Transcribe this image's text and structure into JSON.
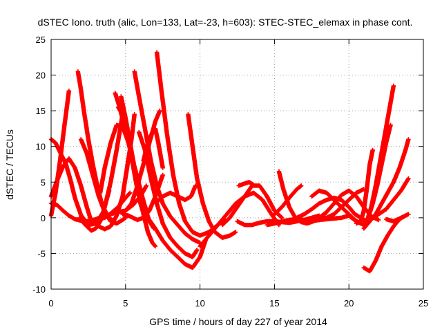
{
  "chart_data": {
    "type": "scatter",
    "title": "dSTEC Iono. truth (alic, Lon=133, Lat=-23, h=603): STEC-STEC_elemax in phase cont.",
    "xlabel": "GPS time / hours of day 227 of year 2014",
    "ylabel": "dSTEC  / TECUs",
    "xlim": [
      0,
      25
    ],
    "ylim": [
      -10,
      25
    ],
    "xticks": [
      0,
      5,
      10,
      15,
      20,
      25
    ],
    "yticks": [
      -10,
      -5,
      0,
      5,
      10,
      15,
      20,
      25
    ],
    "grid": true,
    "marker": "plus",
    "color": "#ff0000",
    "series": [
      {
        "x": [
          0.0,
          0.3,
          0.6,
          0.9,
          1.2
        ],
        "y": [
          0.3,
          3.5,
          8.0,
          13.0,
          17.8
        ]
      },
      {
        "x": [
          0.0,
          0.3,
          0.6,
          1.0,
          1.3,
          1.6,
          2.0,
          2.5,
          3.0,
          3.5,
          3.9
        ],
        "y": [
          11.0,
          10.5,
          9.2,
          7.5,
          5.3,
          2.8,
          0.4,
          -1.0,
          -0.8,
          0.8,
          3.8
        ]
      },
      {
        "x": [
          0.0,
          0.4,
          0.8,
          1.2,
          1.6,
          2.0,
          2.4,
          2.7
        ],
        "y": [
          3.0,
          5.2,
          7.2,
          8.3,
          7.0,
          4.5,
          1.5,
          -0.5
        ]
      },
      {
        "x": [
          0.0,
          0.4,
          0.8,
          1.2,
          1.6,
          2.0,
          2.5,
          3.0,
          3.5,
          4.0,
          4.5,
          5.0,
          5.5,
          6.0,
          6.4
        ],
        "y": [
          2.0,
          1.8,
          1.0,
          0.3,
          -0.2,
          -0.4,
          -0.5,
          -0.2,
          0.2,
          0.5,
          0.8,
          1.0,
          1.8,
          3.0,
          4.5
        ]
      },
      {
        "x": [
          1.8,
          2.0,
          2.2,
          2.5,
          2.8,
          3.1,
          3.4,
          3.8,
          4.2
        ],
        "y": [
          20.5,
          18.0,
          15.0,
          11.0,
          7.5,
          4.5,
          2.0,
          0.2,
          -0.5
        ]
      },
      {
        "x": [
          2.0,
          2.4,
          2.8,
          3.2,
          3.6,
          4.0,
          4.4,
          4.8,
          5.0
        ],
        "y": [
          11.0,
          9.0,
          6.0,
          3.0,
          0.8,
          -0.5,
          -0.8,
          -0.3,
          0.0
        ]
      },
      {
        "x": [
          1.9,
          2.3,
          2.7,
          3.0,
          3.3,
          3.6,
          4.0,
          4.4,
          4.8
        ],
        "y": [
          0.0,
          -1.0,
          -1.8,
          -1.5,
          -0.5,
          1.5,
          5.0,
          9.5,
          14.5
        ]
      },
      {
        "x": [
          2.8,
          3.2,
          3.6,
          4.0,
          4.4,
          4.8,
          5.1,
          5.4,
          5.6
        ],
        "y": [
          -0.5,
          -1.2,
          -1.6,
          -1.2,
          0.3,
          3.0,
          7.0,
          11.0,
          14.5
        ]
      },
      {
        "x": [
          3.2,
          3.6,
          4.0,
          4.5,
          5.0,
          5.3
        ],
        "y": [
          -0.2,
          0.0,
          0.6,
          1.5,
          2.8,
          3.5
        ]
      },
      {
        "x": [
          3.3,
          3.6,
          4.0,
          4.4,
          4.8,
          5.2,
          5.6,
          6.0,
          6.3,
          6.6,
          6.9
        ],
        "y": [
          3.5,
          7.0,
          10.5,
          13.0,
          12.8,
          10.5,
          7.0,
          4.0,
          1.5,
          -0.5,
          -1.5
        ]
      },
      {
        "x": [
          4.3,
          4.6,
          4.9,
          5.2,
          5.5,
          5.8,
          6.1,
          6.4
        ],
        "y": [
          17.5,
          15.5,
          13.0,
          10.5,
          8.0,
          5.5,
          3.0,
          1.0
        ]
      },
      {
        "x": [
          4.5,
          4.8,
          5.1,
          5.4,
          5.7,
          6.0,
          6.3
        ],
        "y": [
          15.5,
          14.5,
          12.0,
          8.5,
          5.0,
          2.0,
          0.0
        ]
      },
      {
        "x": [
          4.7,
          5.0,
          5.3,
          5.6,
          5.9,
          6.2,
          6.5,
          6.8,
          7.0
        ],
        "y": [
          17.0,
          14.0,
          10.5,
          7.0,
          3.5,
          0.5,
          -2.0,
          -3.5,
          -4.0
        ]
      },
      {
        "x": [
          4.8,
          5.2,
          5.5,
          5.8,
          6.2,
          6.6,
          7.0,
          7.5
        ],
        "y": [
          0.5,
          0.3,
          0.0,
          -0.3,
          0.0,
          1.0,
          3.0,
          6.0
        ]
      },
      {
        "x": [
          5.0,
          5.4,
          5.8,
          6.2,
          6.6,
          7.0,
          7.3
        ],
        "y": [
          1.0,
          2.0,
          4.5,
          7.5,
          10.5,
          13.5,
          15.0
        ]
      },
      {
        "x": [
          5.6,
          5.9,
          6.3,
          6.7,
          7.1,
          7.5,
          8.0,
          8.5,
          9.0,
          9.5,
          10.0
        ],
        "y": [
          20.5,
          17.0,
          12.5,
          8.0,
          4.5,
          2.0,
          0.2,
          -1.0,
          -2.2,
          -3.0,
          -3.5
        ]
      },
      {
        "x": [
          5.9,
          6.3,
          6.7,
          7.1,
          7.5,
          8.0,
          8.5,
          9.0,
          9.5,
          9.8
        ],
        "y": [
          12.0,
          9.5,
          5.5,
          2.0,
          -0.8,
          -2.8,
          -4.0,
          -5.0,
          -5.5,
          -4.5
        ]
      },
      {
        "x": [
          6.2,
          6.5,
          6.8,
          7.0,
          7.2,
          7.5
        ],
        "y": [
          8.0,
          10.5,
          12.0,
          12.5,
          10.5,
          7.0
        ]
      },
      {
        "x": [
          7.1,
          7.4,
          7.8,
          8.2,
          8.6,
          9.0,
          9.5,
          10.0,
          10.6,
          11.2,
          11.6
        ],
        "y": [
          23.2,
          18.0,
          11.5,
          6.0,
          2.0,
          -0.5,
          -2.0,
          -2.5,
          -2.0,
          -1.0,
          -0.2
        ]
      },
      {
        "x": [
          6.6,
          7.0,
          7.5,
          8.0,
          8.5,
          9.0,
          9.5,
          10.0,
          10.4
        ],
        "y": [
          -0.3,
          -1.5,
          -3.2,
          -4.5,
          -5.5,
          -6.5,
          -7.0,
          -5.5,
          -3.0
        ]
      },
      {
        "x": [
          7.0,
          7.5,
          8.0,
          8.5,
          9.0,
          9.4,
          9.7
        ],
        "y": [
          2.0,
          3.0,
          3.5,
          3.0,
          2.5,
          3.0,
          4.5
        ]
      },
      {
        "x": [
          9.2,
          9.5,
          9.8,
          10.2,
          10.6,
          11.0,
          11.5,
          12.0,
          12.4
        ],
        "y": [
          14.5,
          10.0,
          5.5,
          2.0,
          -0.5,
          -2.0,
          -2.8,
          -2.5,
          -2.0
        ]
      },
      {
        "x": [
          10.0,
          10.6,
          11.2,
          11.8,
          12.4,
          13.0,
          13.6,
          14.2,
          14.8,
          15.3
        ],
        "y": [
          -4.0,
          -2.5,
          -1.0,
          0.5,
          2.0,
          3.0,
          3.5,
          2.5,
          0.5,
          -1.0
        ]
      },
      {
        "x": [
          11.5,
          12.0,
          12.5,
          13.0,
          13.5,
          14.0,
          14.5,
          15.0,
          15.5
        ],
        "y": [
          -1.0,
          0.0,
          1.5,
          3.0,
          4.5,
          4.5,
          3.0,
          1.0,
          0.0
        ]
      },
      {
        "x": [
          12.6,
          13.0,
          13.3,
          13.6
        ],
        "y": [
          4.5,
          4.8,
          5.0,
          4.6
        ]
      },
      {
        "x": [
          12.5,
          13.0,
          13.5,
          14.0,
          14.5,
          15.0,
          15.5,
          16.0,
          16.5,
          17.0,
          17.5,
          18.0
        ],
        "y": [
          -0.5,
          -1.0,
          -1.0,
          -0.7,
          -0.5,
          -0.5,
          -0.6,
          -0.7,
          -0.5,
          -0.3,
          0.0,
          0.3
        ]
      },
      {
        "x": [
          15.3,
          15.6,
          16.0,
          16.4,
          16.8,
          17.2,
          17.6,
          18.0,
          18.4
        ],
        "y": [
          6.5,
          4.0,
          1.5,
          0.0,
          -0.6,
          -0.8,
          -0.5,
          0.0,
          0.5
        ]
      },
      {
        "x": [
          15.0,
          15.5,
          16.0,
          16.5,
          16.8
        ],
        "y": [
          0.5,
          1.5,
          2.8,
          4.0,
          4.5
        ]
      },
      {
        "x": [
          14.5,
          15.0,
          15.5,
          16.0,
          16.5,
          17.0,
          17.5,
          18.0,
          18.5,
          19.0,
          19.5,
          20.0,
          20.5,
          21.0
        ],
        "y": [
          -1.0,
          -0.8,
          -0.5,
          -0.3,
          -0.2,
          -0.3,
          -0.5,
          -0.3,
          0.0,
          0.5,
          1.5,
          2.5,
          3.5,
          4.0
        ]
      },
      {
        "x": [
          17.5,
          18.0,
          18.5,
          19.0,
          19.5,
          20.0,
          20.4,
          20.8
        ],
        "y": [
          3.0,
          3.8,
          3.5,
          2.5,
          1.5,
          0.5,
          -0.3,
          -0.8
        ]
      },
      {
        "x": [
          16.5,
          17.0,
          17.5,
          18.0,
          18.5,
          19.0,
          19.5,
          20.0,
          20.4,
          20.8,
          21.2
        ],
        "y": [
          0.0,
          0.5,
          1.2,
          2.0,
          2.5,
          2.8,
          2.5,
          1.5,
          0.5,
          0.0,
          -0.5
        ]
      },
      {
        "x": [
          18.0,
          18.5,
          19.0,
          19.5,
          20.0,
          20.5,
          21.0,
          21.5,
          22.0
        ],
        "y": [
          0.0,
          0.8,
          2.0,
          3.2,
          3.8,
          3.0,
          1.5,
          0.2,
          -0.3
        ]
      },
      {
        "x": [
          17.0,
          17.5,
          18.0,
          18.5,
          19.0,
          19.5,
          20.0,
          20.5,
          21.0
        ],
        "y": [
          -0.5,
          -0.4,
          -0.3,
          -0.2,
          -0.1,
          0.0,
          0.3,
          -0.5,
          -1.0
        ]
      },
      {
        "x": [
          20.5,
          20.8,
          21.0,
          21.2,
          21.4,
          21.6
        ],
        "y": [
          -0.8,
          -0.5,
          1.0,
          4.0,
          7.5,
          9.5
        ]
      },
      {
        "x": [
          21.2,
          21.5,
          21.8,
          22.1,
          22.4,
          22.7,
          23.0
        ],
        "y": [
          -0.5,
          1.5,
          4.5,
          8.0,
          11.5,
          15.0,
          18.5
        ]
      },
      {
        "x": [
          21.0,
          21.3,
          21.6,
          21.9,
          22.2,
          22.5,
          22.8
        ],
        "y": [
          -1.0,
          0.0,
          2.0,
          4.5,
          7.5,
          10.5,
          13.0
        ]
      },
      {
        "x": [
          21.0,
          21.4,
          21.8,
          22.2,
          22.6,
          23.0,
          23.4,
          23.8,
          24.0
        ],
        "y": [
          -1.5,
          -0.5,
          0.5,
          2.0,
          3.5,
          5.0,
          7.0,
          9.5,
          11.0
        ]
      },
      {
        "x": [
          21.0,
          21.5,
          22.0,
          22.5,
          23.0,
          23.5,
          24.0
        ],
        "y": [
          -0.5,
          -0.2,
          0.5,
          1.2,
          2.5,
          3.8,
          5.5
        ]
      },
      {
        "x": [
          21.0,
          21.4,
          21.8,
          22.2,
          22.6,
          23.0,
          23.4,
          23.8
        ],
        "y": [
          -7.0,
          -7.5,
          -6.0,
          -4.0,
          -2.5,
          -1.2,
          -0.2,
          0.3
        ]
      },
      {
        "x": [
          22.5,
          23.0,
          23.5,
          24.0
        ],
        "y": [
          -0.2,
          -0.5,
          0.0,
          0.5
        ]
      }
    ]
  }
}
